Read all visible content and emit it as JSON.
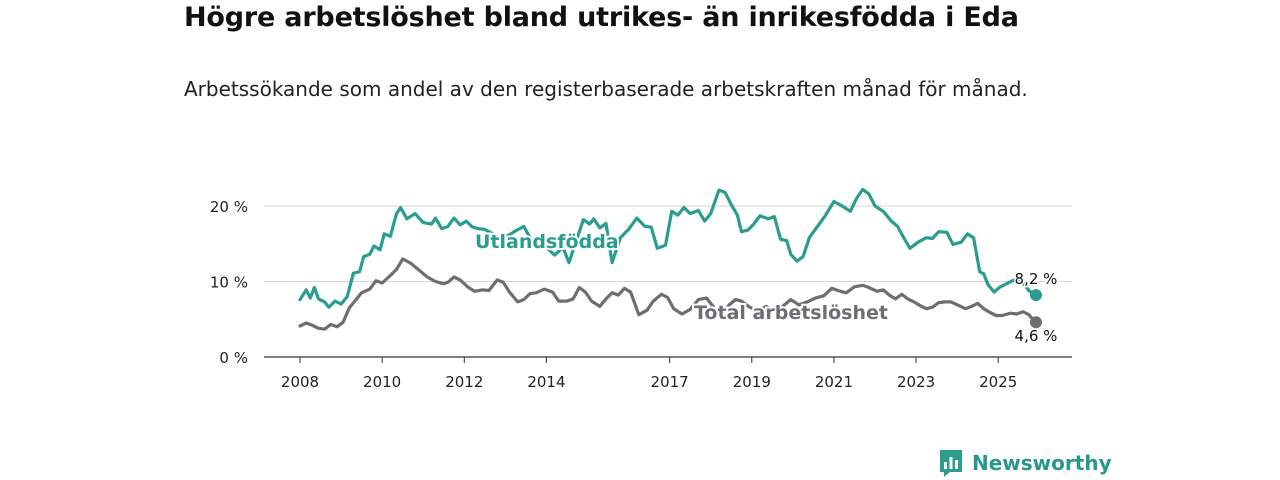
{
  "header": {
    "title": "Högre arbetslöshet bland utrikes- än inrikesfödda i Eda",
    "subtitle": "Arbetssökande som andel av den registerbaserade arbetskraften månad för månad."
  },
  "brand": {
    "name": "Newsworthy",
    "color": "#2a9d8f"
  },
  "chart_data": {
    "type": "line",
    "title": "Högre arbetslöshet bland utrikes- än inrikesfödda i Eda",
    "subtitle": "Arbetssökande som andel av den registerbaserade arbetskraften månad för månad.",
    "xlabel": "",
    "ylabel": "",
    "xlim": [
      2008.0,
      2025.92
    ],
    "ylim": [
      0,
      20
    ],
    "yticks": [
      0,
      10,
      20
    ],
    "ytick_labels": [
      "0 %",
      "10 %",
      "20 %"
    ],
    "xticks": [
      2008,
      2010,
      2012,
      2014,
      2017,
      2019,
      2021,
      2023,
      2025
    ],
    "xtick_labels": [
      "2008",
      "2010",
      "2012",
      "2014",
      "2017",
      "2019",
      "2021",
      "2023",
      "2025"
    ],
    "grid": true,
    "series": [
      {
        "name": "Utlandsfödda",
        "label": "Utlandsfödda",
        "color": "#2a9d8f",
        "end_label": "8,2 %",
        "points": [
          [
            2008.0,
            7.6
          ],
          [
            2008.15,
            8.9
          ],
          [
            2008.25,
            7.8
          ],
          [
            2008.35,
            9.2
          ],
          [
            2008.45,
            7.7
          ],
          [
            2008.6,
            7.3
          ],
          [
            2008.7,
            6.6
          ],
          [
            2008.85,
            7.4
          ],
          [
            2009.0,
            7.0
          ],
          [
            2009.15,
            8.0
          ],
          [
            2009.3,
            11.1
          ],
          [
            2009.45,
            11.3
          ],
          [
            2009.55,
            13.3
          ],
          [
            2009.7,
            13.6
          ],
          [
            2009.8,
            14.7
          ],
          [
            2009.95,
            14.2
          ],
          [
            2010.05,
            16.3
          ],
          [
            2010.2,
            16.0
          ],
          [
            2010.35,
            19.0
          ],
          [
            2010.45,
            19.8
          ],
          [
            2010.6,
            18.3
          ],
          [
            2010.8,
            19.0
          ],
          [
            2011.0,
            17.8
          ],
          [
            2011.2,
            17.6
          ],
          [
            2011.3,
            18.4
          ],
          [
            2011.45,
            17.0
          ],
          [
            2011.6,
            17.3
          ],
          [
            2011.75,
            18.4
          ],
          [
            2011.9,
            17.5
          ],
          [
            2012.05,
            18.0
          ],
          [
            2012.2,
            17.2
          ],
          [
            2012.35,
            17.0
          ],
          [
            2012.5,
            16.9
          ],
          [
            2012.7,
            16.3
          ],
          [
            2012.9,
            15.6
          ],
          [
            2013.1,
            16.2
          ],
          [
            2013.25,
            16.7
          ],
          [
            2013.45,
            17.3
          ],
          [
            2013.6,
            15.8
          ],
          [
            2013.8,
            14.8
          ],
          [
            2014.0,
            14.5
          ],
          [
            2014.2,
            13.5
          ],
          [
            2014.4,
            14.5
          ],
          [
            2014.55,
            12.5
          ],
          [
            2014.7,
            15.0
          ],
          [
            2014.9,
            18.2
          ],
          [
            2015.05,
            17.6
          ],
          [
            2015.15,
            18.3
          ],
          [
            2015.3,
            17.1
          ],
          [
            2015.45,
            17.7
          ],
          [
            2015.6,
            12.5
          ],
          [
            2015.8,
            15.8
          ],
          [
            2016.0,
            16.9
          ],
          [
            2016.2,
            18.4
          ],
          [
            2016.4,
            17.3
          ],
          [
            2016.55,
            17.2
          ],
          [
            2016.7,
            14.4
          ],
          [
            2016.9,
            14.8
          ],
          [
            2017.05,
            19.3
          ],
          [
            2017.2,
            18.8
          ],
          [
            2017.35,
            19.8
          ],
          [
            2017.5,
            19.0
          ],
          [
            2017.7,
            19.4
          ],
          [
            2017.85,
            18.0
          ],
          [
            2018.0,
            19.0
          ],
          [
            2018.2,
            22.1
          ],
          [
            2018.35,
            21.8
          ],
          [
            2018.5,
            20.2
          ],
          [
            2018.65,
            18.8
          ],
          [
            2018.75,
            16.6
          ],
          [
            2018.9,
            16.8
          ],
          [
            2019.05,
            17.6
          ],
          [
            2019.2,
            18.7
          ],
          [
            2019.4,
            18.3
          ],
          [
            2019.55,
            18.6
          ],
          [
            2019.7,
            15.6
          ],
          [
            2019.85,
            15.4
          ],
          [
            2019.95,
            13.6
          ],
          [
            2020.1,
            12.7
          ],
          [
            2020.25,
            13.3
          ],
          [
            2020.4,
            15.8
          ],
          [
            2020.6,
            17.3
          ],
          [
            2020.8,
            18.8
          ],
          [
            2021.0,
            20.6
          ],
          [
            2021.2,
            20.0
          ],
          [
            2021.4,
            19.3
          ],
          [
            2021.55,
            21.0
          ],
          [
            2021.7,
            22.2
          ],
          [
            2021.85,
            21.6
          ],
          [
            2022.0,
            20.0
          ],
          [
            2022.2,
            19.3
          ],
          [
            2022.4,
            18.0
          ],
          [
            2022.55,
            17.3
          ],
          [
            2022.7,
            15.8
          ],
          [
            2022.85,
            14.4
          ],
          [
            2023.05,
            15.2
          ],
          [
            2023.25,
            15.8
          ],
          [
            2023.4,
            15.7
          ],
          [
            2023.55,
            16.6
          ],
          [
            2023.75,
            16.5
          ],
          [
            2023.9,
            14.9
          ],
          [
            2024.1,
            15.2
          ],
          [
            2024.25,
            16.3
          ],
          [
            2024.4,
            15.8
          ],
          [
            2024.55,
            11.3
          ],
          [
            2024.65,
            11.0
          ],
          [
            2024.75,
            9.6
          ],
          [
            2024.9,
            8.6
          ],
          [
            2025.05,
            9.3
          ],
          [
            2025.2,
            9.7
          ],
          [
            2025.35,
            10.1
          ],
          [
            2025.5,
            10.4
          ],
          [
            2025.65,
            9.5
          ],
          [
            2025.75,
            8.8
          ],
          [
            2025.85,
            8.4
          ],
          [
            2025.92,
            8.2
          ]
        ]
      },
      {
        "name": "Total arbetslöshet",
        "label": "Total arbetslöshet",
        "color": "#6e6e72",
        "end_label": "4,6 %",
        "points": [
          [
            2008.0,
            4.1
          ],
          [
            2008.15,
            4.5
          ],
          [
            2008.3,
            4.2
          ],
          [
            2008.45,
            3.8
          ],
          [
            2008.6,
            3.7
          ],
          [
            2008.75,
            4.3
          ],
          [
            2008.9,
            4.0
          ],
          [
            2009.05,
            4.6
          ],
          [
            2009.2,
            6.5
          ],
          [
            2009.35,
            7.5
          ],
          [
            2009.5,
            8.5
          ],
          [
            2009.7,
            9.0
          ],
          [
            2009.85,
            10.1
          ],
          [
            2010.0,
            9.8
          ],
          [
            2010.2,
            10.8
          ],
          [
            2010.35,
            11.6
          ],
          [
            2010.5,
            13.0
          ],
          [
            2010.7,
            12.4
          ],
          [
            2010.9,
            11.5
          ],
          [
            2011.1,
            10.6
          ],
          [
            2011.3,
            10.0
          ],
          [
            2011.5,
            9.7
          ],
          [
            2011.6,
            9.9
          ],
          [
            2011.75,
            10.6
          ],
          [
            2011.9,
            10.2
          ],
          [
            2012.1,
            9.2
          ],
          [
            2012.25,
            8.7
          ],
          [
            2012.45,
            8.9
          ],
          [
            2012.6,
            8.8
          ],
          [
            2012.8,
            10.2
          ],
          [
            2012.95,
            9.9
          ],
          [
            2013.1,
            8.6
          ],
          [
            2013.3,
            7.3
          ],
          [
            2013.45,
            7.6
          ],
          [
            2013.6,
            8.4
          ],
          [
            2013.75,
            8.5
          ],
          [
            2013.95,
            9.0
          ],
          [
            2014.15,
            8.6
          ],
          [
            2014.3,
            7.4
          ],
          [
            2014.5,
            7.4
          ],
          [
            2014.65,
            7.7
          ],
          [
            2014.8,
            9.2
          ],
          [
            2014.95,
            8.6
          ],
          [
            2015.1,
            7.4
          ],
          [
            2015.3,
            6.7
          ],
          [
            2015.45,
            7.7
          ],
          [
            2015.6,
            8.5
          ],
          [
            2015.75,
            8.2
          ],
          [
            2015.9,
            9.1
          ],
          [
            2016.05,
            8.6
          ],
          [
            2016.25,
            5.6
          ],
          [
            2016.45,
            6.2
          ],
          [
            2016.6,
            7.4
          ],
          [
            2016.8,
            8.3
          ],
          [
            2016.95,
            7.9
          ],
          [
            2017.1,
            6.4
          ],
          [
            2017.3,
            5.7
          ],
          [
            2017.5,
            6.3
          ],
          [
            2017.7,
            7.6
          ],
          [
            2017.9,
            7.8
          ],
          [
            2018.1,
            6.4
          ],
          [
            2018.3,
            6.0
          ],
          [
            2018.45,
            6.9
          ],
          [
            2018.6,
            7.6
          ],
          [
            2018.75,
            7.4
          ],
          [
            2018.95,
            6.6
          ],
          [
            2019.15,
            6.2
          ],
          [
            2019.35,
            6.7
          ],
          [
            2019.55,
            6.1
          ],
          [
            2019.75,
            6.7
          ],
          [
            2019.95,
            7.6
          ],
          [
            2020.15,
            6.9
          ],
          [
            2020.35,
            7.3
          ],
          [
            2020.55,
            7.8
          ],
          [
            2020.75,
            8.1
          ],
          [
            2020.95,
            9.1
          ],
          [
            2021.1,
            8.8
          ],
          [
            2021.3,
            8.5
          ],
          [
            2021.5,
            9.3
          ],
          [
            2021.7,
            9.5
          ],
          [
            2021.85,
            9.2
          ],
          [
            2022.05,
            8.7
          ],
          [
            2022.2,
            8.9
          ],
          [
            2022.35,
            8.2
          ],
          [
            2022.5,
            7.7
          ],
          [
            2022.65,
            8.3
          ],
          [
            2022.8,
            7.7
          ],
          [
            2022.95,
            7.3
          ],
          [
            2023.1,
            6.8
          ],
          [
            2023.25,
            6.4
          ],
          [
            2023.4,
            6.6
          ],
          [
            2023.55,
            7.2
          ],
          [
            2023.7,
            7.3
          ],
          [
            2023.85,
            7.3
          ],
          [
            2024.05,
            6.8
          ],
          [
            2024.2,
            6.4
          ],
          [
            2024.35,
            6.7
          ],
          [
            2024.5,
            7.1
          ],
          [
            2024.65,
            6.4
          ],
          [
            2024.8,
            5.9
          ],
          [
            2024.95,
            5.5
          ],
          [
            2025.1,
            5.5
          ],
          [
            2025.3,
            5.8
          ],
          [
            2025.45,
            5.7
          ],
          [
            2025.6,
            6.0
          ],
          [
            2025.75,
            5.6
          ],
          [
            2025.85,
            4.9
          ],
          [
            2025.92,
            4.6
          ]
        ]
      }
    ]
  }
}
